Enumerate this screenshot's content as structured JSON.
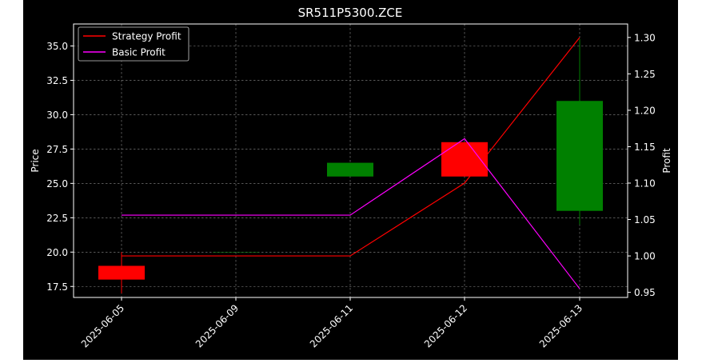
{
  "chart_data": {
    "type": "candlestick",
    "title": "SR511P5300.ZCE",
    "xlabel": "",
    "ylabel": "Price",
    "y2label": "Profit",
    "categories": [
      "2025-06-05",
      "2025-06-09",
      "2025-06-11",
      "2025-06-12",
      "2025-06-13"
    ],
    "ylim": [
      16.7,
      36.6
    ],
    "y2lim": [
      0.943,
      1.3185
    ],
    "yticks": [
      "17.5",
      "20.0",
      "22.5",
      "25.0",
      "27.5",
      "30.0",
      "32.5",
      "35.0"
    ],
    "y2ticks": [
      "0.95",
      "1.00",
      "1.05",
      "1.10",
      "1.15",
      "1.20",
      "1.25",
      "1.30"
    ],
    "grid": true,
    "legend_position": "top-left",
    "candles": [
      {
        "x": "2025-06-05",
        "open": 19.0,
        "close": 18.0,
        "high": 20.0,
        "low": 17.0,
        "color": "#ff0000"
      },
      {
        "x": "2025-06-09",
        "open": 20.0,
        "close": 20.0,
        "high": 20.0,
        "low": 20.0,
        "color": "#008000"
      },
      {
        "x": "2025-06-11",
        "open": 25.5,
        "close": 26.5,
        "high": 26.5,
        "low": 25.5,
        "color": "#008000"
      },
      {
        "x": "2025-06-12",
        "open": 28.0,
        "close": 25.5,
        "high": 28.0,
        "low": 25.5,
        "color": "#ff0000"
      },
      {
        "x": "2025-06-13",
        "open": 23.0,
        "close": 31.0,
        "high": 35.5,
        "low": 22.0,
        "color": "#008000"
      }
    ],
    "series": [
      {
        "name": "Strategy Profit",
        "axis": "right",
        "color": "#ff0000",
        "x": [
          "2025-06-05",
          "2025-06-11",
          "2025-06-12",
          "2025-06-13"
        ],
        "values": [
          1.0,
          1.0,
          1.1,
          1.3
        ]
      },
      {
        "name": "Basic Profit",
        "axis": "right",
        "color": "#ff00ff",
        "x": [
          "2025-06-05",
          "2025-06-11",
          "2025-06-12",
          "2025-06-13"
        ],
        "values": [
          1.056,
          1.056,
          1.161,
          0.955
        ]
      }
    ]
  }
}
